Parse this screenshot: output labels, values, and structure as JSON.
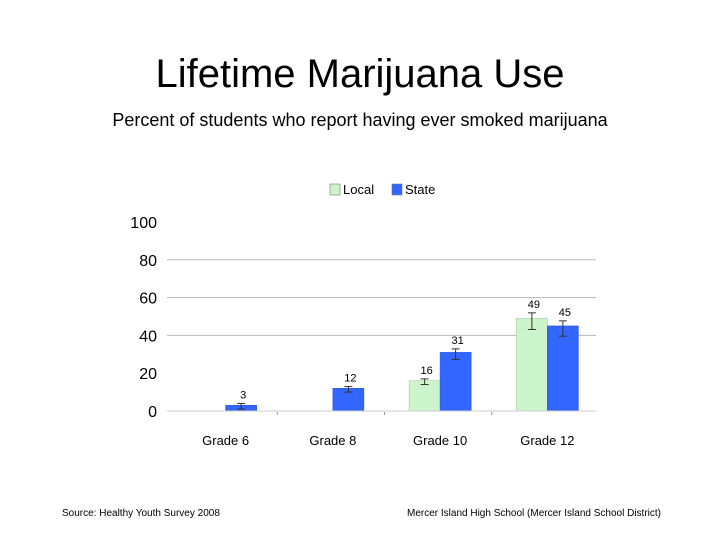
{
  "slide": {
    "title": "Lifetime Marijuana Use",
    "subtitle": "Percent of students who report having ever smoked marijuana",
    "footer_left": "Source: Healthy Youth Survey 2008",
    "footer_right": "Mercer Island High School (Mercer Island School District)"
  },
  "chart_data": {
    "type": "bar",
    "categories": [
      "Grade 6",
      "Grade 8",
      "Grade 10",
      "Grade 12"
    ],
    "series": [
      {
        "name": "Local",
        "color": "#ccf5cc",
        "values": [
          null,
          null,
          16,
          49
        ]
      },
      {
        "name": "State",
        "color": "#3366ff",
        "values": [
          3,
          12,
          31,
          45
        ]
      }
    ],
    "ylim": [
      0,
      100
    ],
    "yticks": [
      0,
      20,
      40,
      60,
      80,
      100
    ],
    "gridlines": [
      40,
      60,
      80
    ],
    "error_bars": true,
    "legend_position": "top",
    "title": "",
    "xlabel": "",
    "ylabel": ""
  }
}
